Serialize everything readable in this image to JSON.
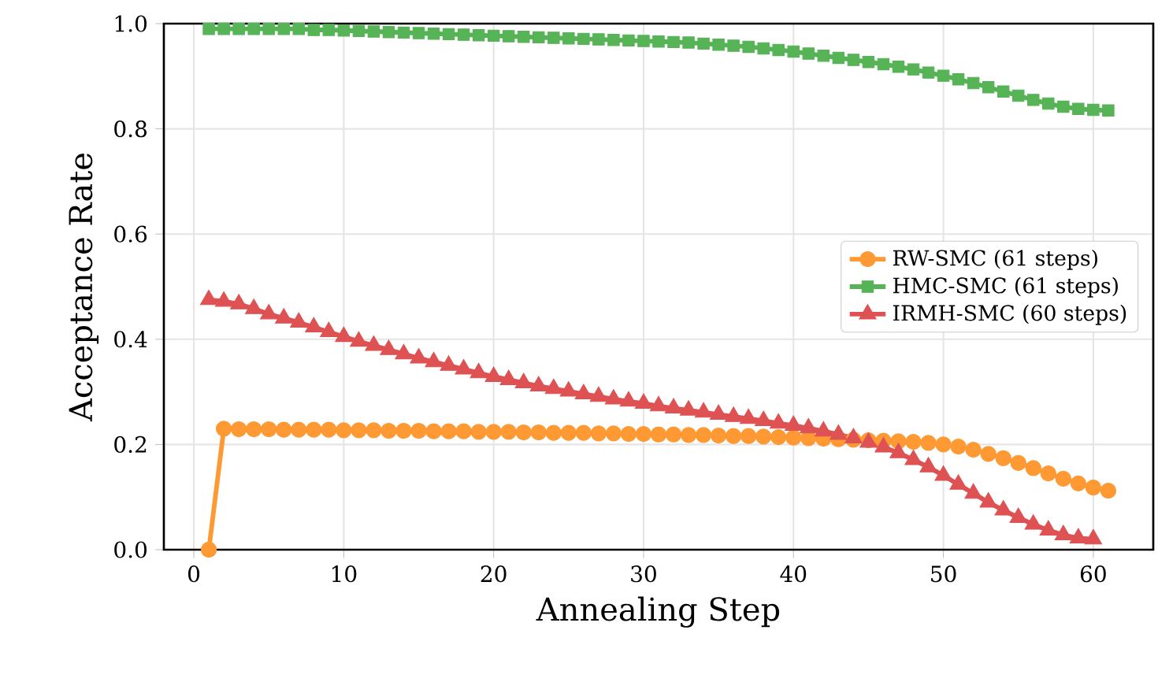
{
  "chart_data": {
    "type": "line",
    "xlabel": "Annealing Step",
    "ylabel": "Acceptance Rate",
    "x": [
      1,
      2,
      3,
      4,
      5,
      6,
      7,
      8,
      9,
      10,
      11,
      12,
      13,
      14,
      15,
      16,
      17,
      18,
      19,
      20,
      21,
      22,
      23,
      24,
      25,
      26,
      27,
      28,
      29,
      30,
      31,
      32,
      33,
      34,
      35,
      36,
      37,
      38,
      39,
      40,
      41,
      42,
      43,
      44,
      45,
      46,
      47,
      48,
      49,
      50,
      51,
      52,
      53,
      54,
      55,
      56,
      57,
      58,
      59,
      60,
      61
    ],
    "xlim": [
      -2,
      64
    ],
    "xticks": [
      0,
      10,
      20,
      30,
      40,
      50,
      60
    ],
    "ylim": [
      0,
      1
    ],
    "yticks": [
      {
        "value": 0,
        "label": "0.0"
      },
      0.2,
      0.4,
      0.6,
      0.8,
      {
        "value": 1,
        "label": "1.0"
      }
    ],
    "grid": true,
    "legend": "right",
    "line_style": "solid",
    "series": [
      {
        "name": "RW-SMC (61 steps)",
        "color": "#ff9933",
        "marker": "circle",
        "values": [
          0,
          0.23,
          0.229,
          0.229,
          0.229,
          0.228,
          0.228,
          0.228,
          0.228,
          0.227,
          0.227,
          0.227,
          0.226,
          0.226,
          0.226,
          0.225,
          0.225,
          0.225,
          0.224,
          0.224,
          0.224,
          0.223,
          0.223,
          0.222,
          0.222,
          0.222,
          0.221,
          0.221,
          0.22,
          0.22,
          0.219,
          0.219,
          0.218,
          0.218,
          0.217,
          0.216,
          0.216,
          0.215,
          0.214,
          0.213,
          0.212,
          0.211,
          0.21,
          0.209,
          0.208,
          0.207,
          0.206,
          0.205,
          0.203,
          0.2,
          0.196,
          0.19,
          0.182,
          0.174,
          0.165,
          0.155,
          0.145,
          0.135,
          0.126,
          0.118,
          0.112
        ]
      },
      {
        "name": "HMC-SMC (61 steps)",
        "color": "#56b356",
        "marker": "square",
        "values": [
          0.99,
          0.99,
          0.99,
          0.99,
          0.99,
          0.99,
          0.99,
          0.988,
          0.988,
          0.987,
          0.986,
          0.985,
          0.984,
          0.983,
          0.982,
          0.981,
          0.98,
          0.979,
          0.978,
          0.977,
          0.976,
          0.975,
          0.974,
          0.973,
          0.972,
          0.971,
          0.97,
          0.969,
          0.968,
          0.967,
          0.966,
          0.965,
          0.964,
          0.962,
          0.96,
          0.958,
          0.956,
          0.953,
          0.95,
          0.947,
          0.943,
          0.939,
          0.935,
          0.931,
          0.927,
          0.923,
          0.918,
          0.913,
          0.907,
          0.901,
          0.894,
          0.887,
          0.879,
          0.871,
          0.863,
          0.855,
          0.848,
          0.842,
          0.838,
          0.836,
          0.835
        ]
      },
      {
        "name": "IRMH-SMC (60 steps)",
        "color": "#de5253",
        "marker": "triangle",
        "x": [
          1,
          2,
          3,
          4,
          5,
          6,
          7,
          8,
          9,
          10,
          11,
          12,
          13,
          14,
          15,
          16,
          17,
          18,
          19,
          20,
          21,
          22,
          23,
          24,
          25,
          26,
          27,
          28,
          29,
          30,
          31,
          32,
          33,
          34,
          35,
          36,
          37,
          38,
          39,
          40,
          41,
          42,
          43,
          44,
          45,
          46,
          47,
          48,
          49,
          50,
          51,
          52,
          53,
          54,
          55,
          56,
          57,
          58,
          59,
          60
        ],
        "values": [
          0.475,
          0.472,
          0.467,
          0.458,
          0.448,
          0.44,
          0.432,
          0.423,
          0.414,
          0.405,
          0.396,
          0.388,
          0.38,
          0.372,
          0.364,
          0.357,
          0.35,
          0.343,
          0.336,
          0.329,
          0.323,
          0.317,
          0.311,
          0.306,
          0.301,
          0.296,
          0.291,
          0.286,
          0.282,
          0.278,
          0.273,
          0.269,
          0.265,
          0.261,
          0.257,
          0.253,
          0.249,
          0.245,
          0.24,
          0.236,
          0.231,
          0.225,
          0.219,
          0.212,
          0.204,
          0.195,
          0.184,
          0.171,
          0.157,
          0.141,
          0.124,
          0.107,
          0.09,
          0.075,
          0.061,
          0.048,
          0.037,
          0.028,
          0.022,
          0.02
        ]
      }
    ]
  }
}
